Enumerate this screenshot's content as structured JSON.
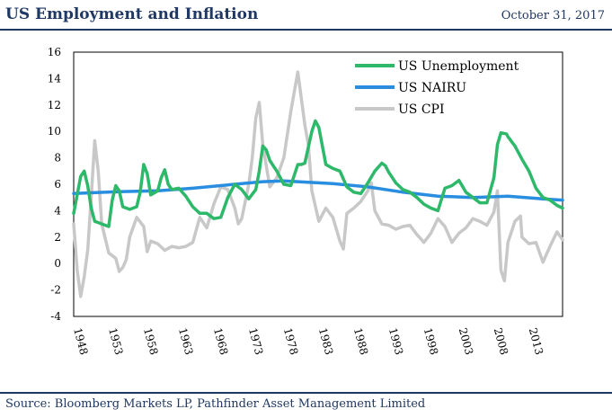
{
  "header": {
    "title": "US Employment and Inflation",
    "date": "October 31, 2017"
  },
  "footer": {
    "source": "Source: Bloomberg Markets LP, Pathfinder Asset Management Limited"
  },
  "chart_data": {
    "type": "line",
    "title": "",
    "xlabel": "",
    "ylabel": "",
    "xlim": [
      1948,
      2017.8
    ],
    "ylim": [
      -4,
      16
    ],
    "yticks": [
      -4,
      -2,
      0,
      2,
      4,
      6,
      8,
      10,
      12,
      14,
      16
    ],
    "xticks": [
      "1948",
      "1953",
      "1958",
      "1963",
      "1968",
      "1973",
      "1978",
      "1983",
      "1988",
      "1993",
      "1998",
      "2003",
      "2008",
      "2013"
    ],
    "legend_position": "top-right",
    "grid": false,
    "series": [
      {
        "name": "US Unemployment",
        "color": "#2db86a",
        "x": [
          1948,
          1949,
          1949.5,
          1950,
          1950.5,
          1951,
          1951.5,
          1952,
          1953,
          1953.5,
          1954,
          1954.5,
          1955,
          1956,
          1957,
          1957.5,
          1958,
          1958.5,
          1959,
          1960,
          1960.5,
          1961,
          1961.5,
          1962,
          1963,
          1964,
          1965,
          1966,
          1967,
          1968,
          1969,
          1970,
          1971,
          1972,
          1973,
          1974,
          1974.5,
          1975,
          1975.5,
          1976,
          1977,
          1978,
          1979,
          1980,
          1980.5,
          1981,
          1982,
          1982.5,
          1983,
          1984,
          1985,
          1986,
          1987,
          1988,
          1989,
          1990,
          1991,
          1992,
          1992.5,
          1993,
          1994,
          1995,
          1996,
          1997,
          1998,
          1999,
          2000,
          2001,
          2002,
          2003,
          2004,
          2005,
          2006,
          2007,
          2008,
          2008.5,
          2009,
          2009.8,
          2010,
          2011,
          2012,
          2013,
          2014,
          2015,
          2016,
          2017,
          2017.8
        ],
        "values": [
          3.8,
          6.6,
          7.0,
          5.9,
          4.2,
          3.2,
          3.1,
          3.0,
          2.8,
          4.8,
          5.9,
          5.5,
          4.3,
          4.1,
          4.3,
          5.4,
          7.5,
          6.8,
          5.2,
          5.5,
          6.5,
          7.1,
          6.0,
          5.6,
          5.7,
          5.1,
          4.3,
          3.8,
          3.8,
          3.4,
          3.5,
          5.0,
          6.0,
          5.6,
          4.9,
          5.6,
          7.0,
          8.9,
          8.6,
          7.8,
          7.0,
          6.0,
          5.9,
          7.5,
          7.5,
          7.6,
          10.0,
          10.8,
          10.3,
          7.5,
          7.2,
          7.0,
          5.8,
          5.4,
          5.3,
          6.1,
          7.0,
          7.6,
          7.4,
          6.9,
          6.1,
          5.6,
          5.4,
          5.0,
          4.5,
          4.2,
          4.0,
          5.7,
          5.9,
          6.3,
          5.4,
          5.0,
          4.6,
          4.6,
          6.5,
          9.0,
          9.9,
          9.8,
          9.6,
          8.9,
          7.9,
          7.0,
          5.7,
          5.0,
          4.8,
          4.4,
          4.2
        ]
      },
      {
        "name": "US NAIRU",
        "color": "#2a8ee0",
        "x": [
          1948,
          1950,
          1955,
          1960,
          1965,
          1970,
          1975,
          1978,
          1980,
          1985,
          1990,
          1995,
          2000,
          2005,
          2010,
          2015,
          2017.8
        ],
        "values": [
          5.3,
          5.35,
          5.45,
          5.5,
          5.7,
          5.95,
          6.2,
          6.25,
          6.2,
          6.05,
          5.8,
          5.4,
          5.1,
          5.0,
          5.1,
          4.9,
          4.8
        ]
      },
      {
        "name": "US CPI",
        "color": "#c8c8c8",
        "x": [
          1948,
          1948.5,
          1949,
          1949.5,
          1950,
          1950.5,
          1951,
          1951.5,
          1952,
          1953,
          1954,
          1954.5,
          1955,
          1955.5,
          1956,
          1957,
          1958,
          1958.5,
          1959,
          1960,
          1961,
          1962,
          1963,
          1964,
          1965,
          1966,
          1967,
          1968,
          1969,
          1970,
          1971,
          1971.5,
          1972,
          1973,
          1973.5,
          1974,
          1974.5,
          1975,
          1976,
          1977,
          1978,
          1979,
          1979.5,
          1980,
          1980.5,
          1981,
          1981.5,
          1982,
          1983,
          1984,
          1985,
          1986,
          1986.5,
          1987,
          1988,
          1989,
          1990,
          1990.5,
          1991,
          1992,
          1993,
          1994,
          1995,
          1996,
          1997,
          1998,
          1999,
          2000,
          2001,
          2002,
          2003,
          2004,
          2005,
          2006,
          2007,
          2008,
          2008.5,
          2009,
          2009.5,
          2010,
          2011,
          2011.8,
          2012,
          2013,
          2014,
          2015,
          2016,
          2017,
          2017.8
        ],
        "values": [
          3.0,
          -0.5,
          -2.5,
          -1.0,
          1.0,
          5.0,
          9.3,
          7.0,
          3.0,
          0.8,
          0.4,
          -0.6,
          -0.3,
          0.3,
          2.0,
          3.5,
          2.8,
          0.9,
          1.7,
          1.5,
          1.0,
          1.3,
          1.2,
          1.3,
          1.6,
          3.5,
          2.7,
          4.5,
          5.8,
          5.6,
          4.2,
          3.0,
          3.4,
          6.0,
          8.0,
          11.0,
          12.2,
          9.0,
          5.8,
          6.5,
          8.0,
          11.5,
          13.0,
          14.5,
          12.5,
          10.5,
          9.0,
          5.5,
          3.2,
          4.2,
          3.5,
          1.7,
          1.1,
          3.8,
          4.2,
          4.7,
          5.5,
          6.1,
          4.0,
          3.0,
          2.9,
          2.6,
          2.8,
          2.9,
          2.2,
          1.6,
          2.3,
          3.4,
          2.8,
          1.6,
          2.3,
          2.7,
          3.4,
          3.2,
          2.9,
          3.9,
          5.5,
          -0.5,
          -1.3,
          1.6,
          3.2,
          3.6,
          2.0,
          1.5,
          1.6,
          0.1,
          1.3,
          2.4,
          1.8
        ]
      }
    ]
  }
}
